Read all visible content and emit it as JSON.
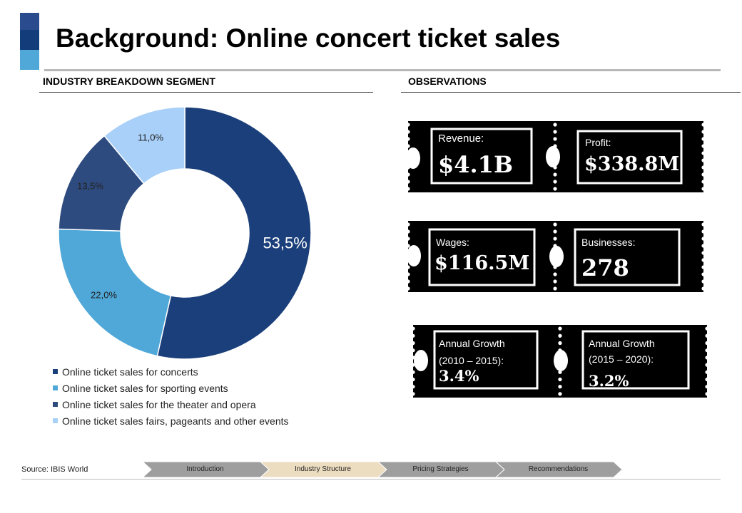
{
  "title": "Background: Online concert ticket sales",
  "sections": {
    "breakdown": "INDUSTRY BREAKDOWN SEGMENT",
    "observations": "OBSERVATIONS"
  },
  "chart_data": {
    "type": "pie",
    "variant": "donut",
    "title": "",
    "categories": [
      "Online ticket sales for concerts",
      "Online ticket sales for sporting events",
      "Online ticket sales for the theater and opera",
      "Online ticket sales fairs, pageants and other events"
    ],
    "values": [
      53.5,
      22.0,
      13.5,
      11.0
    ],
    "labels": [
      "53,5%",
      "22,0%",
      "13,5%",
      "11,0%"
    ],
    "colors": [
      "#1b3f7a",
      "#4fa8d8",
      "#2e4b7f",
      "#a8d0f8"
    ],
    "legend_position": "bottom-left"
  },
  "observations": {
    "revenue": {
      "label": "Revenue:",
      "value": "$4.1B"
    },
    "profit": {
      "label": "Profit:",
      "value": "$338.8M"
    },
    "wages": {
      "label": "Wages:",
      "value": "$116.5M"
    },
    "businesses": {
      "label": "Businesses:",
      "value": "278"
    },
    "growth_past": {
      "label_line1": "Annual Growth",
      "label_line2": "(2010 – 2015):",
      "value": "3.4%"
    },
    "growth_future": {
      "label_line1": "Annual Growth",
      "label_line2": "(2015 – 2020):",
      "value": "3.2%"
    }
  },
  "source": "Source: IBIS World",
  "nav": {
    "steps": [
      "Introduction",
      "Industry Structure",
      "Pricing Strategies",
      "Recommendations"
    ],
    "active_index": 1,
    "colors": {
      "normal": "#9e9e9e",
      "active": "#ecdcc0"
    }
  },
  "accent_colors": [
    "#2a4b8d",
    "#123d7a",
    "#4fa8d8"
  ]
}
